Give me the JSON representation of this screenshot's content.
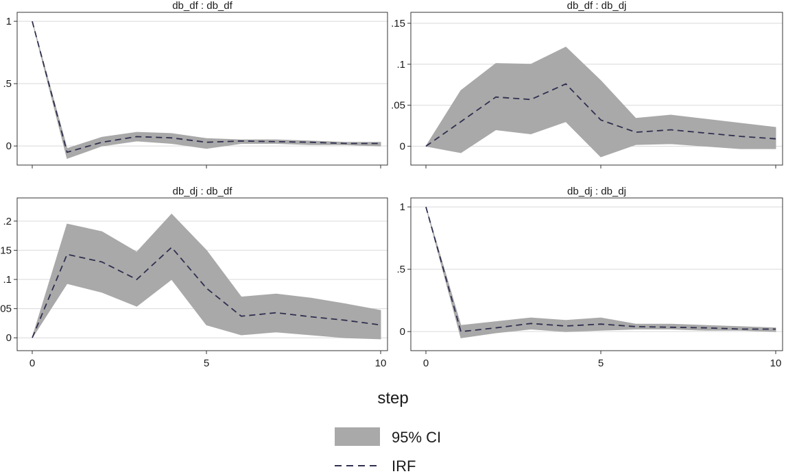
{
  "x_axis_label": "step",
  "legend": [
    {
      "label": "95% CI",
      "kind": "band",
      "color": "#a9a9a9"
    },
    {
      "label": "IRF",
      "kind": "dashed-line",
      "color": "#2e2e4f"
    }
  ],
  "colors": {
    "band": "#a9a9a9",
    "irf": "#2e2e4f",
    "grid": "#d9d9d9",
    "frame": "#333333"
  },
  "chart_data": [
    {
      "type": "area",
      "title": "db_df : db_df",
      "xlabel": "step",
      "x": [
        0,
        1,
        2,
        3,
        4,
        5,
        6,
        7,
        8,
        9,
        10
      ],
      "xlim": [
        0,
        10
      ],
      "xticks": [
        "0",
        "5",
        "10"
      ],
      "ylim": [
        -0.12,
        1.05
      ],
      "yticks": [
        {
          "v": 0,
          "t": "0"
        },
        {
          "v": 0.5,
          "t": ".5"
        },
        {
          "v": 1,
          "t": "1"
        }
      ],
      "grid": true,
      "series": [
        {
          "name": "95% CI",
          "kind": "band",
          "lower": [
            1,
            -0.1,
            0.0,
            0.04,
            0.02,
            -0.02,
            0.02,
            0.02,
            0.01,
            0.01,
            0.0
          ],
          "upper": [
            1,
            -0.02,
            0.07,
            0.11,
            0.1,
            0.06,
            0.05,
            0.05,
            0.04,
            0.03,
            0.03
          ]
        },
        {
          "name": "IRF",
          "kind": "line",
          "values": [
            1,
            -0.05,
            0.03,
            0.075,
            0.065,
            0.03,
            0.04,
            0.035,
            0.03,
            0.02,
            0.02
          ]
        }
      ]
    },
    {
      "type": "area",
      "title": "db_df : db_dj",
      "xlabel": "step",
      "x": [
        0,
        1,
        2,
        3,
        4,
        5,
        6,
        7,
        8,
        9,
        10
      ],
      "xlim": [
        0,
        10
      ],
      "xticks": [
        "0",
        "5",
        "10"
      ],
      "ylim": [
        -0.018,
        0.16
      ],
      "yticks": [
        {
          "v": 0,
          "t": "0"
        },
        {
          "v": 0.05,
          "t": ".05"
        },
        {
          "v": 0.1,
          "t": ".1"
        },
        {
          "v": 0.15,
          "t": ".15"
        }
      ],
      "grid": true,
      "series": [
        {
          "name": "95% CI",
          "kind": "band",
          "lower": [
            0,
            -0.008,
            0.02,
            0.015,
            0.03,
            -0.013,
            0.002,
            0.003,
            0.0,
            -0.003,
            -0.003
          ],
          "upper": [
            0,
            0.068,
            0.101,
            0.1,
            0.121,
            0.08,
            0.034,
            0.038,
            0.033,
            0.028,
            0.023
          ]
        },
        {
          "name": "IRF",
          "kind": "line",
          "values": [
            0,
            0.03,
            0.06,
            0.057,
            0.076,
            0.032,
            0.017,
            0.02,
            0.016,
            0.012,
            0.009
          ]
        }
      ]
    },
    {
      "type": "area",
      "title": "db_dj : db_df",
      "xlabel": "step",
      "x": [
        0,
        1,
        2,
        3,
        4,
        5,
        6,
        7,
        8,
        9,
        10
      ],
      "xlim": [
        0,
        10
      ],
      "xticks": [
        "0",
        "5",
        "10"
      ],
      "ylim": [
        -0.015,
        0.235
      ],
      "yticks": [
        {
          "v": 0,
          "t": "0"
        },
        {
          "v": 0.05,
          "t": ".05"
        },
        {
          "v": 0.1,
          "t": ".1"
        },
        {
          "v": 0.15,
          "t": ".15"
        },
        {
          "v": 0.2,
          "t": ".2"
        }
      ],
      "grid": true,
      "series": [
        {
          "name": "95% CI",
          "kind": "band",
          "lower": [
            0,
            0.093,
            0.078,
            0.054,
            0.1,
            0.022,
            0.005,
            0.01,
            0.005,
            0.0,
            -0.002
          ],
          "upper": [
            0,
            0.195,
            0.182,
            0.147,
            0.212,
            0.15,
            0.07,
            0.075,
            0.068,
            0.058,
            0.047
          ]
        },
        {
          "name": "IRF",
          "kind": "line",
          "values": [
            0,
            0.143,
            0.13,
            0.1,
            0.155,
            0.085,
            0.037,
            0.043,
            0.036,
            0.03,
            0.022
          ]
        }
      ]
    },
    {
      "type": "area",
      "title": "db_dj : db_dj",
      "xlabel": "step",
      "x": [
        0,
        1,
        2,
        3,
        4,
        5,
        6,
        7,
        8,
        9,
        10
      ],
      "xlim": [
        0,
        10
      ],
      "xticks": [
        "0",
        "5",
        "10"
      ],
      "ylim": [
        -0.12,
        1.05
      ],
      "yticks": [
        {
          "v": 0,
          "t": "0"
        },
        {
          "v": 0.5,
          "t": ".5"
        },
        {
          "v": 1,
          "t": "1"
        }
      ],
      "grid": true,
      "series": [
        {
          "name": "95% CI",
          "kind": "band",
          "lower": [
            1,
            -0.05,
            -0.01,
            0.02,
            0.0,
            0.01,
            0.02,
            0.02,
            0.01,
            0.01,
            0.0
          ],
          "upper": [
            1,
            0.05,
            0.08,
            0.11,
            0.09,
            0.11,
            0.06,
            0.06,
            0.05,
            0.04,
            0.03
          ]
        },
        {
          "name": "IRF",
          "kind": "line",
          "values": [
            1,
            0.0,
            0.03,
            0.065,
            0.045,
            0.06,
            0.04,
            0.035,
            0.03,
            0.02,
            0.02
          ]
        }
      ]
    }
  ]
}
